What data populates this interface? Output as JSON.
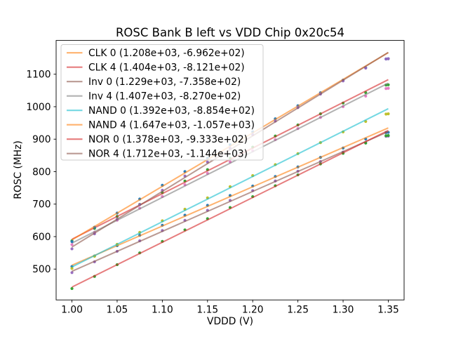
{
  "chart_data": {
    "type": "scatter",
    "title": "ROSC Bank B left vs VDD Chip 0x20c54",
    "xlabel": "VDDD (V)",
    "ylabel": "ROSC (MHz)",
    "xlim": [
      0.9825,
      1.3675
    ],
    "ylim": [
      405,
      1204
    ],
    "fit_range": [
      1.0,
      1.35
    ],
    "grid": false,
    "legend_position": "upper left",
    "colors": {
      "spine": "#000000",
      "text": "#000000",
      "background": "#ffffff"
    },
    "xticks": [
      {
        "value": 1.0,
        "label": "1.00"
      },
      {
        "value": 1.05,
        "label": "1.05"
      },
      {
        "value": 1.1,
        "label": "1.10"
      },
      {
        "value": 1.15,
        "label": "1.15"
      },
      {
        "value": 1.2,
        "label": "1.20"
      },
      {
        "value": 1.25,
        "label": "1.25"
      },
      {
        "value": 1.3,
        "label": "1.30"
      },
      {
        "value": 1.35,
        "label": "1.35"
      }
    ],
    "yticks": [
      {
        "value": 500,
        "label": "500"
      },
      {
        "value": 600,
        "label": "600"
      },
      {
        "value": 700,
        "label": "700"
      },
      {
        "value": 800,
        "label": "800"
      },
      {
        "value": 900,
        "label": "900"
      },
      {
        "value": 1000,
        "label": "1000"
      },
      {
        "value": 1100,
        "label": "1100"
      }
    ],
    "x": [
      1.0,
      1.025,
      1.05,
      1.075,
      1.1,
      1.125,
      1.15,
      1.175,
      1.2,
      1.225,
      1.25,
      1.275,
      1.3,
      1.325,
      1.3475,
      1.35
    ],
    "series": [
      {
        "name": "CLK 0",
        "legend_label": "CLK 0 (1.208e+03, -6.962e+02)",
        "fit_slope": 1208,
        "fit_intercept": -696.2,
        "line_color": "#ff7f0e",
        "line_opacity": 0.6,
        "scatter_color": "#1f77b4",
        "y": [
          507.8,
          540.4,
          572.2,
          604.0,
          635.0,
          666.0,
          696.2,
          726.4,
          755.8,
          785.2,
          814.6,
          844.0,
          872.6,
          900.4,
          920.3,
          920.9
        ]
      },
      {
        "name": "CLK 4",
        "legend_label": "CLK 4 (1.404e+03, -8.121e+02)",
        "fit_slope": 1404,
        "fit_intercept": -812.1,
        "line_color": "#d62728",
        "line_opacity": 0.6,
        "scatter_color": "#2ca02c",
        "y": [
          587.2,
          625.1,
          662.1,
          699.1,
          735.1,
          771.1,
          806.2,
          841.3,
          875.5,
          909.7,
          943.8,
          978.0,
          1011.2,
          1043.5,
          1066.7,
          1067.4
        ]
      },
      {
        "name": "Inv 0",
        "legend_label": "Inv 0 (1.229e+03, -7.358e+02)",
        "fit_slope": 1229,
        "fit_intercept": -735.8,
        "line_color": "#8c564b",
        "line_opacity": 0.6,
        "scatter_color": "#9467bd",
        "y": [
          489.1,
          522.3,
          554.7,
          587.0,
          618.6,
          650.1,
          680.9,
          711.6,
          741.5,
          771.3,
          801.3,
          831.2,
          860.3,
          888.5,
          908.8,
          909.5
        ]
      },
      {
        "name": "Inv 4",
        "legend_label": "Inv 4 (1.407e+03, -8.270e+02)",
        "fit_slope": 1407,
        "fit_intercept": -827.0,
        "line_color": "#7f7f7f",
        "line_opacity": 0.6,
        "scatter_color": "#e377c2",
        "y": [
          575.3,
          613.3,
          650.4,
          687.4,
          723.5,
          759.7,
          794.9,
          830.0,
          864.2,
          898.5,
          932.7,
          966.9,
          1000.2,
          1032.6,
          1055.8,
          1056.6
        ]
      },
      {
        "name": "NAND 0",
        "legend_label": "NAND 0 (1.392e+03, -8.854e+02)",
        "fit_slope": 1392,
        "fit_intercept": -885.4,
        "line_color": "#17becf",
        "line_opacity": 0.6,
        "scatter_color": "#bcbd22",
        "y": [
          502.0,
          539.5,
          576.2,
          612.9,
          648.6,
          684.3,
          719.1,
          753.9,
          787.8,
          821.7,
          855.5,
          889.4,
          922.3,
          954.4,
          977.3,
          978.0
        ]
      },
      {
        "name": "NAND 4",
        "legend_label": "NAND 4 (1.647e+03, -1.057e+03)",
        "fit_slope": 1647,
        "fit_intercept": -1057.0,
        "line_color": "#ff7f0e",
        "line_opacity": 0.6,
        "scatter_color": "#1f77b4",
        "y": [
          584.5,
          629.0,
          672.4,
          715.7,
          758.0,
          800.3,
          841.5,
          882.6,
          922.7,
          962.8,
          1002.9,
          1042.9,
          1081.9,
          1119.8,
          1146.9,
          1147.8
        ]
      },
      {
        "name": "NOR 0",
        "legend_label": "NOR 0 (1.378e+03, -9.333e+02)",
        "fit_slope": 1378,
        "fit_intercept": -933.3,
        "line_color": "#d62728",
        "line_opacity": 0.6,
        "scatter_color": "#2ca02c",
        "y": [
          440.1,
          477.4,
          513.6,
          549.9,
          585.3,
          620.7,
          655.1,
          689.6,
          723.1,
          756.6,
          790.1,
          823.7,
          856.3,
          888.0,
          910.7,
          911.4
        ]
      },
      {
        "name": "NOR 4",
        "legend_label": "NOR 4 (1.712e+03, -1.144e+03)",
        "fit_slope": 1712,
        "fit_intercept": -1144.0,
        "line_color": "#8c564b",
        "line_opacity": 0.6,
        "scatter_color": "#9467bd",
        "y": [
          562.3,
          608.5,
          653.6,
          698.7,
          742.6,
          786.6,
          829.4,
          872.2,
          913.8,
          955.5,
          997.1,
          1038.8,
          1079.3,
          1118.7,
          1146.9,
          1147.8
        ]
      }
    ]
  }
}
